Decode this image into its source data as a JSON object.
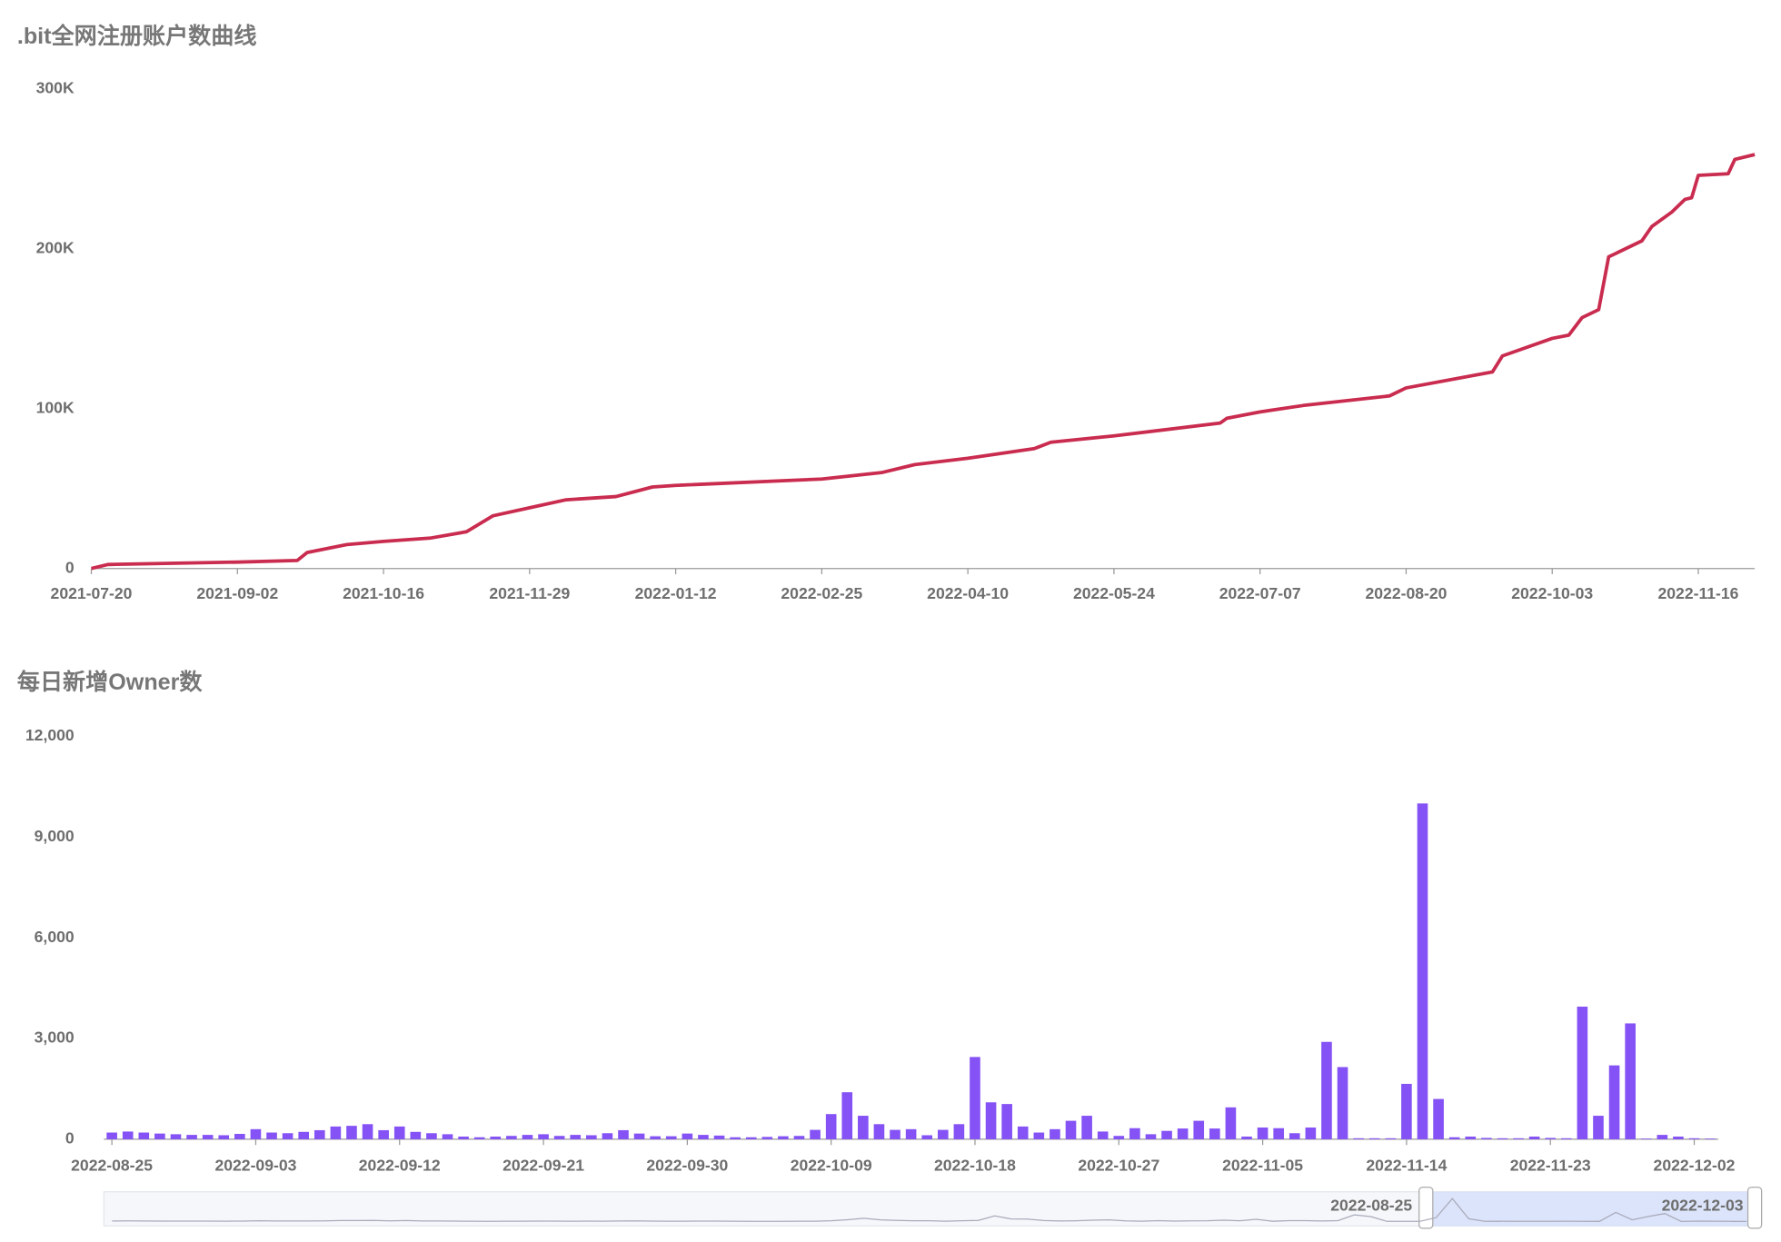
{
  "chart_data": [
    {
      "type": "line",
      "title": ".bit全网注册账户数曲线",
      "x": [
        "2021-07-20",
        "2021-07-25",
        "2021-09-02",
        "2021-09-20",
        "2021-09-23",
        "2021-10-05",
        "2021-10-16",
        "2021-10-30",
        "2021-11-10",
        "2021-11-18",
        "2021-11-29",
        "2021-12-10",
        "2021-12-25",
        "2022-01-05",
        "2022-01-12",
        "2022-02-25",
        "2022-03-15",
        "2022-03-25",
        "2022-04-10",
        "2022-04-30",
        "2022-05-05",
        "2022-05-24",
        "2022-06-25",
        "2022-06-27",
        "2022-07-07",
        "2022-07-20",
        "2022-08-15",
        "2022-08-20",
        "2022-09-15",
        "2022-09-18",
        "2022-10-03",
        "2022-10-08",
        "2022-10-12",
        "2022-10-17",
        "2022-10-20",
        "2022-10-30",
        "2022-11-02",
        "2022-11-08",
        "2022-11-12",
        "2022-11-14",
        "2022-11-16",
        "2022-11-25",
        "2022-11-27",
        "2022-12-03"
      ],
      "series": [
        {
          "color": "#c92c4f",
          "values": [
            0,
            2500,
            4000,
            5000,
            10000,
            15000,
            17000,
            19000,
            23000,
            33000,
            38000,
            43000,
            45000,
            51000,
            52000,
            56000,
            60000,
            65000,
            69000,
            75000,
            79000,
            83000,
            91000,
            94000,
            98000,
            102000,
            108000,
            113000,
            123000,
            133000,
            144000,
            146000,
            157000,
            162000,
            195000,
            205000,
            214000,
            223000,
            231000,
            232000,
            246000,
            247000,
            256000,
            259000
          ]
        }
      ],
      "xlim": [
        "2021-07-20",
        "2022-12-03"
      ],
      "xticks": [
        "2021-07-20",
        "2021-09-02",
        "2021-10-16",
        "2021-11-29",
        "2022-01-12",
        "2022-02-25",
        "2022-04-10",
        "2022-05-24",
        "2022-07-07",
        "2022-08-20",
        "2022-10-03",
        "2022-11-16"
      ],
      "ylim": [
        0,
        300000
      ],
      "yticks": [
        0,
        {
          "value": 100000,
          "label": "100K"
        },
        {
          "value": 200000,
          "label": "200K"
        },
        {
          "value": 300000,
          "label": "300K"
        }
      ]
    },
    {
      "type": "bar",
      "title": "每日新增Owner数",
      "categories": [
        "2022-08-25",
        null,
        null,
        null,
        null,
        null,
        null,
        null,
        null,
        "2022-09-03",
        null,
        null,
        null,
        null,
        null,
        null,
        null,
        null,
        "2022-09-12",
        null,
        null,
        null,
        null,
        null,
        null,
        null,
        null,
        "2022-09-21",
        null,
        null,
        null,
        null,
        null,
        null,
        null,
        null,
        "2022-09-30",
        null,
        null,
        null,
        null,
        null,
        null,
        null,
        null,
        "2022-10-09",
        null,
        null,
        null,
        null,
        null,
        null,
        null,
        null,
        "2022-10-18",
        null,
        null,
        null,
        null,
        null,
        null,
        null,
        null,
        "2022-10-27",
        null,
        null,
        null,
        null,
        null,
        null,
        null,
        null,
        "2022-11-05",
        null,
        null,
        null,
        null,
        null,
        null,
        null,
        null,
        "2022-11-14",
        null,
        null,
        null,
        null,
        null,
        null,
        null,
        null,
        "2022-11-23",
        null,
        null,
        null,
        null,
        null,
        null,
        null,
        null,
        "2022-12-02",
        null
      ],
      "values": [
        200,
        230,
        200,
        170,
        150,
        130,
        130,
        120,
        160,
        300,
        200,
        180,
        220,
        270,
        380,
        400,
        450,
        270,
        380,
        220,
        180,
        150,
        80,
        60,
        80,
        100,
        130,
        150,
        100,
        130,
        120,
        180,
        270,
        170,
        90,
        90,
        170,
        130,
        110,
        60,
        60,
        70,
        90,
        100,
        280,
        750,
        1400,
        700,
        450,
        280,
        300,
        120,
        280,
        450,
        2450,
        1100,
        1050,
        380,
        200,
        300,
        550,
        700,
        230,
        100,
        330,
        150,
        250,
        320,
        550,
        320,
        950,
        80,
        350,
        330,
        180,
        350,
        2900,
        2150,
        30,
        30,
        30,
        1650,
        10000,
        1200,
        60,
        80,
        40,
        30,
        30,
        80,
        40,
        30,
        3950,
        700,
        2200,
        3450,
        20,
        130,
        80,
        30,
        20
      ],
      "color": "#8452f5",
      "ylim": [
        0,
        12000
      ],
      "yticks": [
        0,
        {
          "value": 3000,
          "label": "3,000"
        },
        {
          "value": 6000,
          "label": "6,000"
        },
        {
          "value": 9000,
          "label": "9,000"
        },
        {
          "value": 12000,
          "label": "12,000"
        }
      ],
      "zoom": {
        "start": "2022-08-25",
        "end": "2022-12-03"
      }
    }
  ]
}
